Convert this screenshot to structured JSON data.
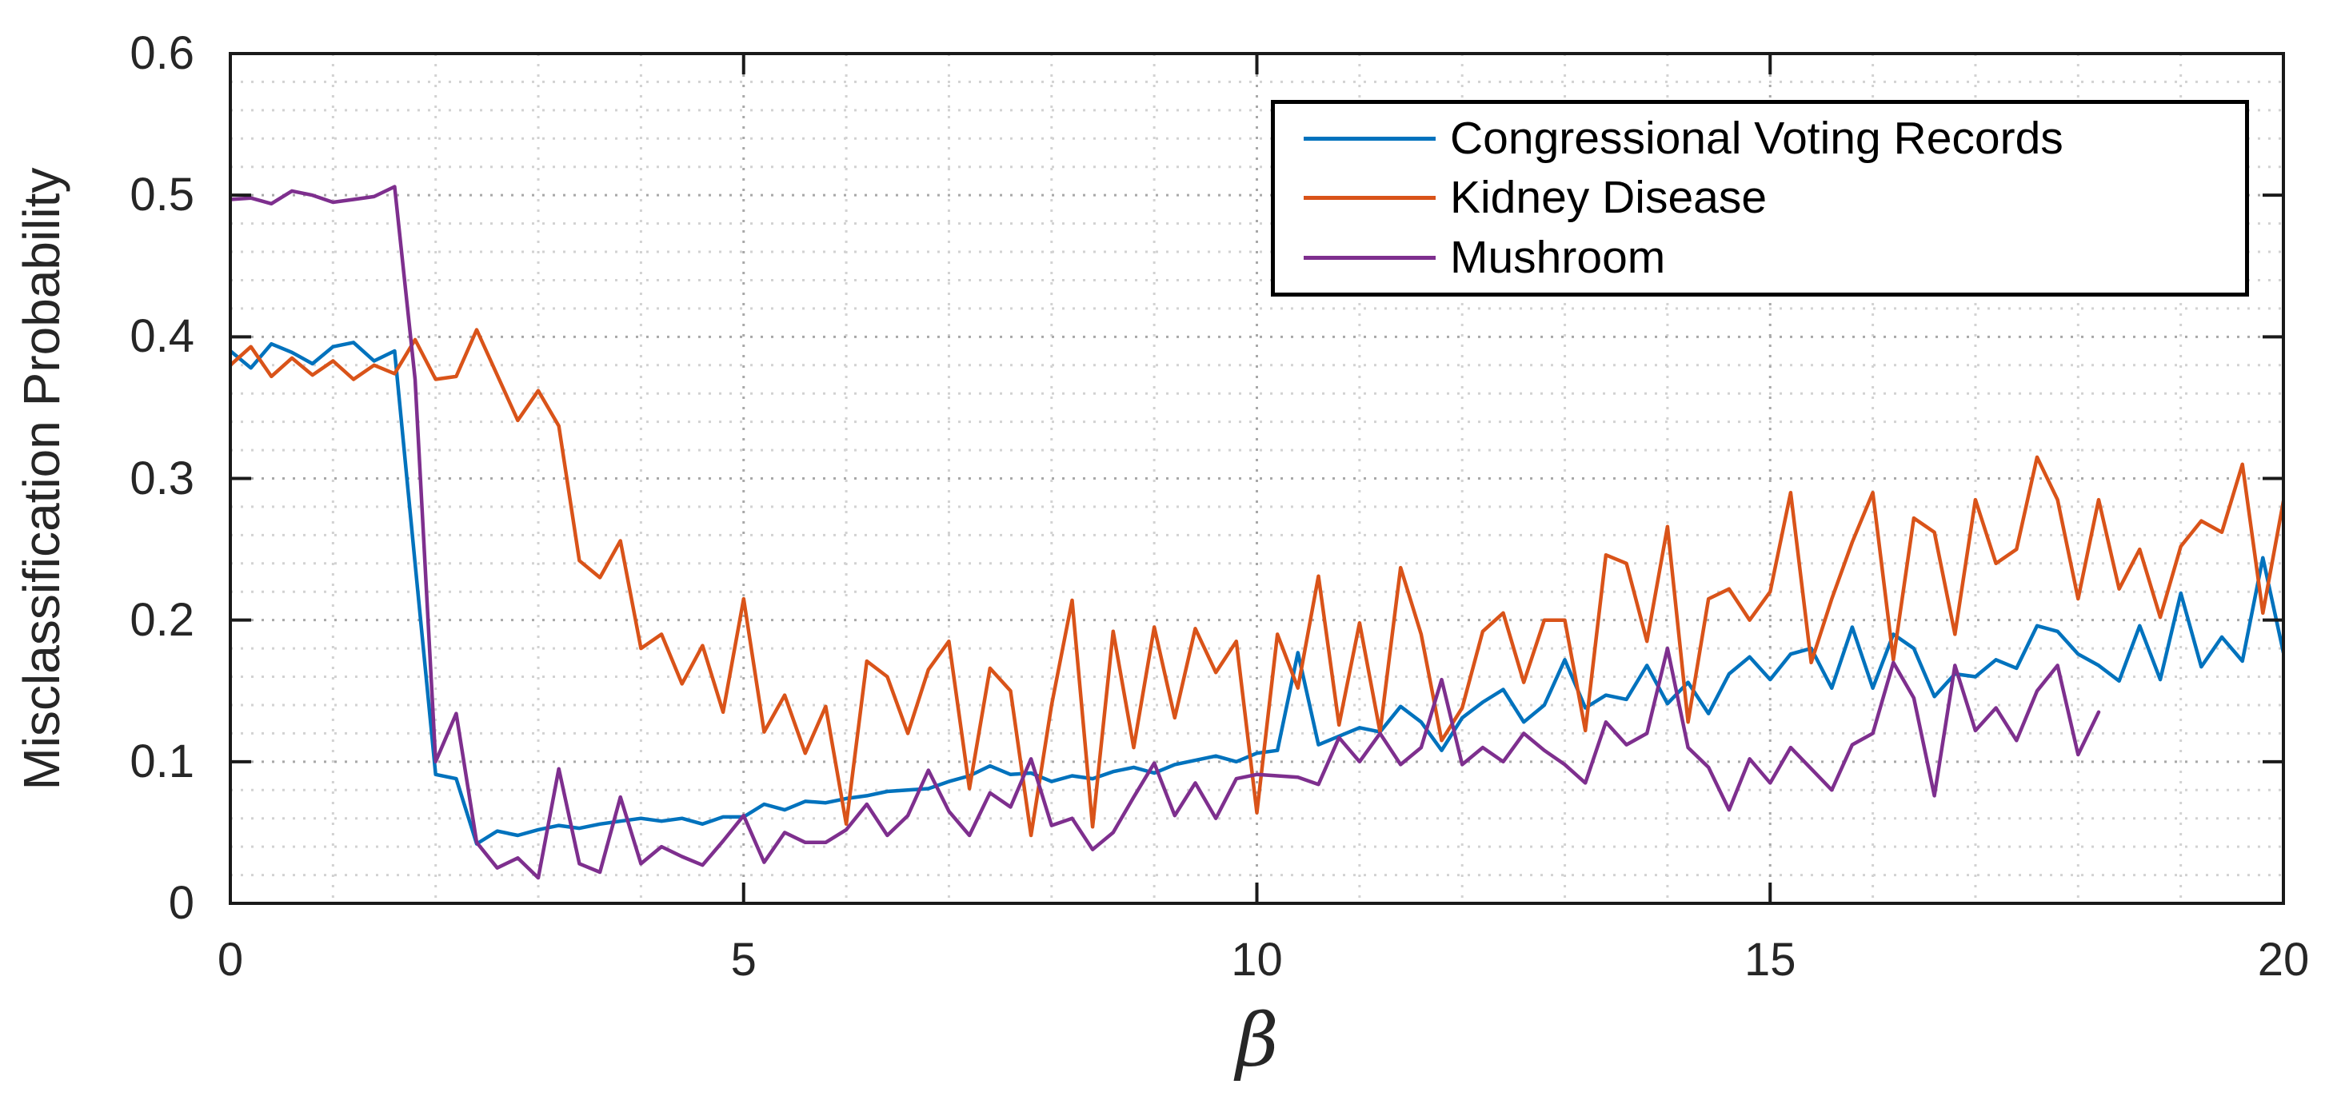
{
  "figure": {
    "background": "#ffffff",
    "axis_color": "#1a1a1a",
    "tick_label_color": "#262626",
    "minor_grid_color": "#d2d2d2",
    "major_grid_color": "#a8a8a8"
  },
  "chart_data": {
    "type": "line",
    "title": "",
    "xlabel": "β",
    "ylabel": "Misclassification Probability",
    "xlim": [
      0,
      20
    ],
    "ylim": [
      0,
      0.6
    ],
    "xticks": {
      "values": [
        0,
        5,
        10,
        15,
        20
      ],
      "labels": [
        "0",
        "5",
        "10",
        "15",
        "20"
      ]
    },
    "yticks": {
      "values": [
        0,
        0.1,
        0.2,
        0.3,
        0.4,
        0.5,
        0.6
      ],
      "labels": [
        "0",
        "0.1",
        "0.2",
        "0.3",
        "0.4",
        "0.5",
        "0.6"
      ]
    },
    "grid": "dotted minor and major grid on",
    "minor_grid": {
      "x_step": 1,
      "y_step": 0.02
    },
    "legend_position": "top-right",
    "series": [
      {
        "name": "Congressional Voting Records",
        "color": "#0072BD",
        "x_start": 0,
        "x_step": 0.2,
        "values": [
          0.39,
          0.378,
          0.395,
          0.389,
          0.381,
          0.393,
          0.396,
          0.383,
          0.39,
          0.24,
          0.091,
          0.088,
          0.042,
          0.051,
          0.048,
          0.052,
          0.055,
          0.053,
          0.056,
          0.058,
          0.06,
          0.058,
          0.06,
          0.056,
          0.061,
          0.061,
          0.07,
          0.066,
          0.072,
          0.071,
          0.074,
          0.076,
          0.079,
          0.08,
          0.081,
          0.086,
          0.09,
          0.097,
          0.091,
          0.092,
          0.086,
          0.09,
          0.088,
          0.093,
          0.096,
          0.092,
          0.098,
          0.101,
          0.104,
          0.1,
          0.106,
          0.108,
          0.177,
          0.112,
          0.118,
          0.124,
          0.121,
          0.139,
          0.128,
          0.108,
          0.131,
          0.142,
          0.151,
          0.128,
          0.14,
          0.172,
          0.138,
          0.147,
          0.144,
          0.168,
          0.141,
          0.156,
          0.134,
          0.162,
          0.174,
          0.158,
          0.176,
          0.18,
          0.152,
          0.195,
          0.152,
          0.19,
          0.18,
          0.146,
          0.162,
          0.16,
          0.172,
          0.166,
          0.196,
          0.192,
          0.176,
          0.168,
          0.157,
          0.196,
          0.158,
          0.219,
          0.167,
          0.188,
          0.171,
          0.244,
          0.177
        ]
      },
      {
        "name": "Kidney Disease",
        "color": "#D95319",
        "x_start": 0,
        "x_step": 0.2,
        "values": [
          0.38,
          0.393,
          0.372,
          0.385,
          0.373,
          0.383,
          0.37,
          0.38,
          0.374,
          0.398,
          0.37,
          0.372,
          0.405,
          0.373,
          0.341,
          0.362,
          0.337,
          0.242,
          0.23,
          0.256,
          0.18,
          0.19,
          0.155,
          0.182,
          0.135,
          0.215,
          0.121,
          0.147,
          0.106,
          0.139,
          0.056,
          0.171,
          0.16,
          0.12,
          0.165,
          0.185,
          0.081,
          0.166,
          0.15,
          0.048,
          0.14,
          0.214,
          0.054,
          0.192,
          0.11,
          0.195,
          0.131,
          0.194,
          0.163,
          0.185,
          0.064,
          0.19,
          0.152,
          0.231,
          0.126,
          0.198,
          0.121,
          0.237,
          0.19,
          0.115,
          0.138,
          0.192,
          0.205,
          0.156,
          0.2,
          0.2,
          0.122,
          0.246,
          0.24,
          0.185,
          0.266,
          0.128,
          0.215,
          0.222,
          0.2,
          0.22,
          0.29,
          0.17,
          0.215,
          0.255,
          0.29,
          0.172,
          0.272,
          0.262,
          0.19,
          0.285,
          0.24,
          0.25,
          0.315,
          0.285,
          0.215,
          0.285,
          0.222,
          0.25,
          0.202,
          0.252,
          0.27,
          0.262,
          0.31,
          0.205,
          0.284
        ]
      },
      {
        "name": "Mushroom",
        "color": "#7E2F8E",
        "x_start": 0,
        "x_step": 0.2,
        "values": [
          0.497,
          0.498,
          0.494,
          0.503,
          0.5,
          0.495,
          0.497,
          0.499,
          0.506,
          0.37,
          0.1,
          0.134,
          0.043,
          0.025,
          0.032,
          0.018,
          0.095,
          0.028,
          0.022,
          0.075,
          0.028,
          0.04,
          0.033,
          0.027,
          0.044,
          0.062,
          0.029,
          0.05,
          0.043,
          0.043,
          0.052,
          0.07,
          0.048,
          0.062,
          0.094,
          0.065,
          0.048,
          0.078,
          0.068,
          0.102,
          0.055,
          0.06,
          0.038,
          0.05,
          0.075,
          0.099,
          0.062,
          0.085,
          0.06,
          0.088,
          0.091,
          0.09,
          0.089,
          0.084,
          0.117,
          0.1,
          0.12,
          0.098,
          0.11,
          0.158,
          0.098,
          0.11,
          0.1,
          0.12,
          0.108,
          0.098,
          0.085,
          0.128,
          0.112,
          0.12,
          0.18,
          0.11,
          0.096,
          0.066,
          0.102,
          0.085,
          0.11,
          0.095,
          0.08,
          0.112,
          0.12,
          0.17,
          0.145,
          0.076,
          0.168,
          0.122,
          0.138,
          0.115,
          0.15,
          0.168,
          0.105,
          0.135
        ]
      }
    ]
  }
}
